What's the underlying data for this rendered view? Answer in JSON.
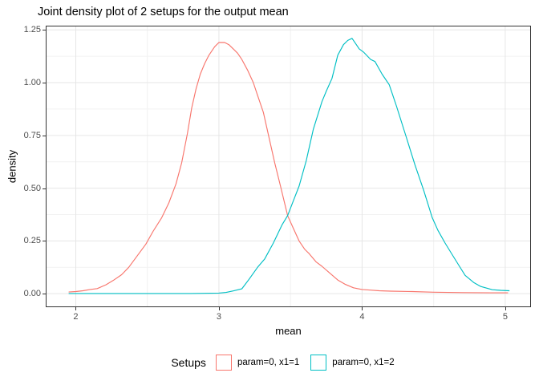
{
  "title": "Joint density plot of 2 setups for the output mean",
  "axes": {
    "x_label": "mean",
    "y_label": "density"
  },
  "legend": {
    "title": "Setups",
    "entries": [
      {
        "label": "param=0, x1=1",
        "color": "#F8766D"
      },
      {
        "label": "param=0, x1=2",
        "color": "#00BFC4"
      }
    ]
  },
  "colors": {
    "series_red": "#F8766D",
    "series_teal": "#00BFC4",
    "grid_major": "#E6E6E6",
    "grid_minor": "#F2F2F2",
    "panel_border": "#333333",
    "tick_label": "#4D4D4D",
    "background": "#FFFFFF"
  },
  "chart_data": {
    "type": "line",
    "title": "Joint density plot of 2 setups for the output mean",
    "xlabel": "mean",
    "ylabel": "density",
    "xlim": [
      1.79,
      5.18
    ],
    "ylim": [
      -0.064,
      1.27
    ],
    "grid": true,
    "legend_position": "bottom",
    "x_ticks": {
      "values": [
        2,
        3,
        4,
        5
      ],
      "labels": [
        "2",
        "3",
        "4",
        "5"
      ]
    },
    "y_ticks": {
      "values": [
        0,
        0.25,
        0.5,
        0.75,
        1.0,
        1.25
      ],
      "labels": [
        "0.00",
        "0.25",
        "0.50",
        "0.75",
        "1.00",
        "1.25"
      ]
    },
    "x_minor": [
      2.5,
      3.5,
      4.5
    ],
    "y_minor": [
      0.125,
      0.375,
      0.625,
      0.875,
      1.125
    ],
    "series": [
      {
        "name": "param=0, x1=1",
        "color": "#F8766D",
        "points": [
          [
            1.95,
            0.008
          ],
          [
            2.0,
            0.01
          ],
          [
            2.05,
            0.014
          ],
          [
            2.1,
            0.02
          ],
          [
            2.15,
            0.024
          ],
          [
            2.21,
            0.042
          ],
          [
            2.26,
            0.062
          ],
          [
            2.32,
            0.09
          ],
          [
            2.37,
            0.125
          ],
          [
            2.43,
            0.18
          ],
          [
            2.49,
            0.235
          ],
          [
            2.54,
            0.295
          ],
          [
            2.6,
            0.36
          ],
          [
            2.65,
            0.43
          ],
          [
            2.7,
            0.52
          ],
          [
            2.74,
            0.62
          ],
          [
            2.78,
            0.76
          ],
          [
            2.81,
            0.88
          ],
          [
            2.84,
            0.97
          ],
          [
            2.87,
            1.04
          ],
          [
            2.9,
            1.09
          ],
          [
            2.93,
            1.13
          ],
          [
            2.97,
            1.17
          ],
          [
            3.0,
            1.19
          ],
          [
            3.04,
            1.19
          ],
          [
            3.07,
            1.18
          ],
          [
            3.1,
            1.16
          ],
          [
            3.13,
            1.14
          ],
          [
            3.16,
            1.11
          ],
          [
            3.2,
            1.06
          ],
          [
            3.24,
            1.0
          ],
          [
            3.27,
            0.94
          ],
          [
            3.31,
            0.86
          ],
          [
            3.35,
            0.74
          ],
          [
            3.39,
            0.62
          ],
          [
            3.43,
            0.51
          ],
          [
            3.48,
            0.37
          ],
          [
            3.52,
            0.31
          ],
          [
            3.56,
            0.25
          ],
          [
            3.6,
            0.21
          ],
          [
            3.63,
            0.19
          ],
          [
            3.68,
            0.15
          ],
          [
            3.72,
            0.13
          ],
          [
            3.77,
            0.1
          ],
          [
            3.83,
            0.065
          ],
          [
            3.88,
            0.045
          ],
          [
            3.94,
            0.028
          ],
          [
            4.0,
            0.02
          ],
          [
            4.06,
            0.017
          ],
          [
            4.12,
            0.014
          ],
          [
            4.2,
            0.012
          ],
          [
            4.35,
            0.01
          ],
          [
            4.5,
            0.007
          ],
          [
            4.7,
            0.005
          ],
          [
            4.9,
            0.004
          ],
          [
            5.02,
            0.004
          ]
        ]
      },
      {
        "name": "param=0, x1=2",
        "color": "#00BFC4",
        "points": [
          [
            1.95,
            0.001
          ],
          [
            2.2,
            0.001
          ],
          [
            2.5,
            0.001
          ],
          [
            2.8,
            0.001
          ],
          [
            3.0,
            0.003
          ],
          [
            3.05,
            0.006
          ],
          [
            3.1,
            0.013
          ],
          [
            3.16,
            0.023
          ],
          [
            3.21,
            0.068
          ],
          [
            3.27,
            0.125
          ],
          [
            3.32,
            0.165
          ],
          [
            3.38,
            0.24
          ],
          [
            3.44,
            0.325
          ],
          [
            3.48,
            0.37
          ],
          [
            3.52,
            0.44
          ],
          [
            3.56,
            0.51
          ],
          [
            3.61,
            0.63
          ],
          [
            3.66,
            0.78
          ],
          [
            3.72,
            0.91
          ],
          [
            3.75,
            0.96
          ],
          [
            3.79,
            1.02
          ],
          [
            3.83,
            1.13
          ],
          [
            3.87,
            1.18
          ],
          [
            3.9,
            1.2
          ],
          [
            3.93,
            1.21
          ],
          [
            3.96,
            1.18
          ],
          [
            3.98,
            1.16
          ],
          [
            4.01,
            1.145
          ],
          [
            4.06,
            1.11
          ],
          [
            4.09,
            1.1
          ],
          [
            4.14,
            1.04
          ],
          [
            4.19,
            0.99
          ],
          [
            4.24,
            0.89
          ],
          [
            4.31,
            0.74
          ],
          [
            4.37,
            0.61
          ],
          [
            4.43,
            0.49
          ],
          [
            4.49,
            0.36
          ],
          [
            4.53,
            0.3
          ],
          [
            4.58,
            0.24
          ],
          [
            4.63,
            0.185
          ],
          [
            4.68,
            0.13
          ],
          [
            4.72,
            0.087
          ],
          [
            4.78,
            0.053
          ],
          [
            4.83,
            0.034
          ],
          [
            4.91,
            0.019
          ],
          [
            4.97,
            0.016
          ],
          [
            5.03,
            0.014
          ]
        ]
      }
    ]
  }
}
